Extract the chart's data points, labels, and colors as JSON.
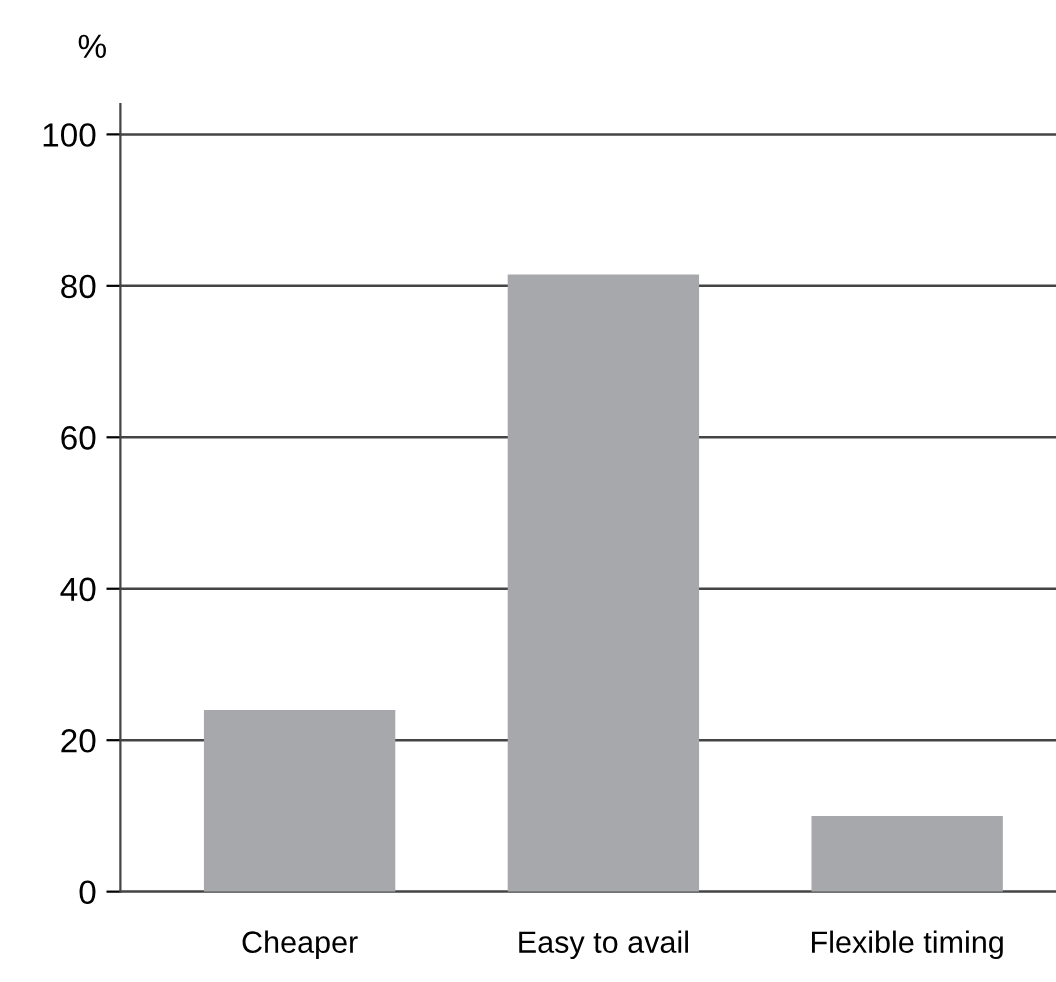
{
  "chart_data": {
    "type": "bar",
    "ylabel": "%",
    "categories": [
      "Cheaper",
      "Easy to avail",
      "Flexible timing"
    ],
    "values": [
      24,
      81.5,
      10
    ],
    "color": "#a7a8ab",
    "ylim": [
      0,
      104
    ],
    "yticks": [
      0,
      20,
      40,
      60,
      80,
      100
    ],
    "grid": "y"
  }
}
